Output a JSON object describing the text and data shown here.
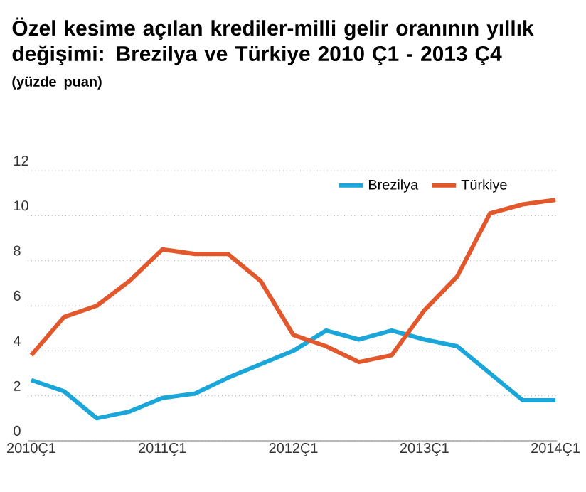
{
  "chart_data": {
    "type": "line",
    "title": "Özel kesime açılan krediler-milli gelir oranının yıllık değişimi: Brezilya ve Türkiye 2010 Ç1 - 2013 Ç4",
    "subtitle": "(yüzde puan)",
    "categories": [
      "2010Ç1",
      null,
      null,
      null,
      "2011Ç1",
      null,
      null,
      null,
      "2012Ç1",
      null,
      null,
      null,
      "2013Ç1",
      null,
      null,
      null,
      "2014Ç1"
    ],
    "series": [
      {
        "name": "Brezilya",
        "color": "#1ba6d9",
        "values": [
          2.7,
          2.2,
          1.0,
          1.3,
          1.9,
          2.1,
          2.8,
          3.4,
          4.0,
          4.9,
          4.5,
          4.9,
          4.5,
          4.2,
          3.0,
          1.8,
          1.8
        ]
      },
      {
        "name": "Türkiye",
        "color": "#e2572b",
        "values": [
          3.8,
          5.5,
          6.0,
          7.1,
          8.5,
          8.3,
          8.3,
          7.1,
          4.7,
          4.2,
          3.5,
          3.8,
          5.8,
          7.3,
          10.1,
          10.5,
          10.7
        ]
      }
    ],
    "ylim": [
      0,
      12
    ],
    "yticks": [
      0,
      2,
      4,
      6,
      8,
      10,
      12
    ],
    "grid": "y",
    "legend": "top right",
    "marker": "none",
    "line_style": "solid"
  }
}
